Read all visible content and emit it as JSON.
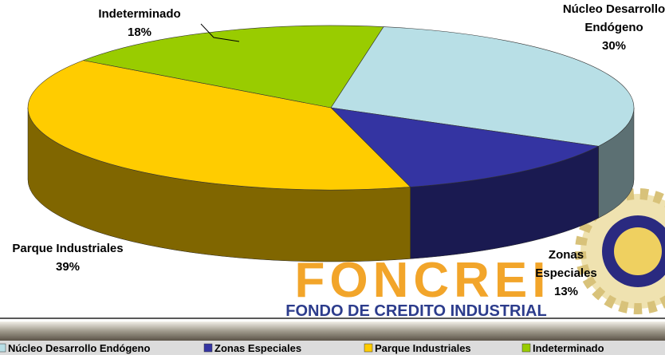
{
  "chart_data": {
    "type": "pie3d",
    "categories": [
      "Núcleo Desarrollo Endógeno",
      "Zonas Especiales",
      "Parque  Industriales",
      "Indeterminado"
    ],
    "values": [
      30,
      13,
      39,
      18
    ],
    "value_labels": [
      "30%",
      "13%",
      "39%",
      "18%"
    ],
    "colors": [
      "#b8dfe6",
      "#3434a2",
      "#ffcc00",
      "#99cc00"
    ],
    "legend": "bottom"
  },
  "logo": {
    "name": "FONCREI",
    "tagline": "FONDO DE CREDITO INDUSTRIAL"
  }
}
